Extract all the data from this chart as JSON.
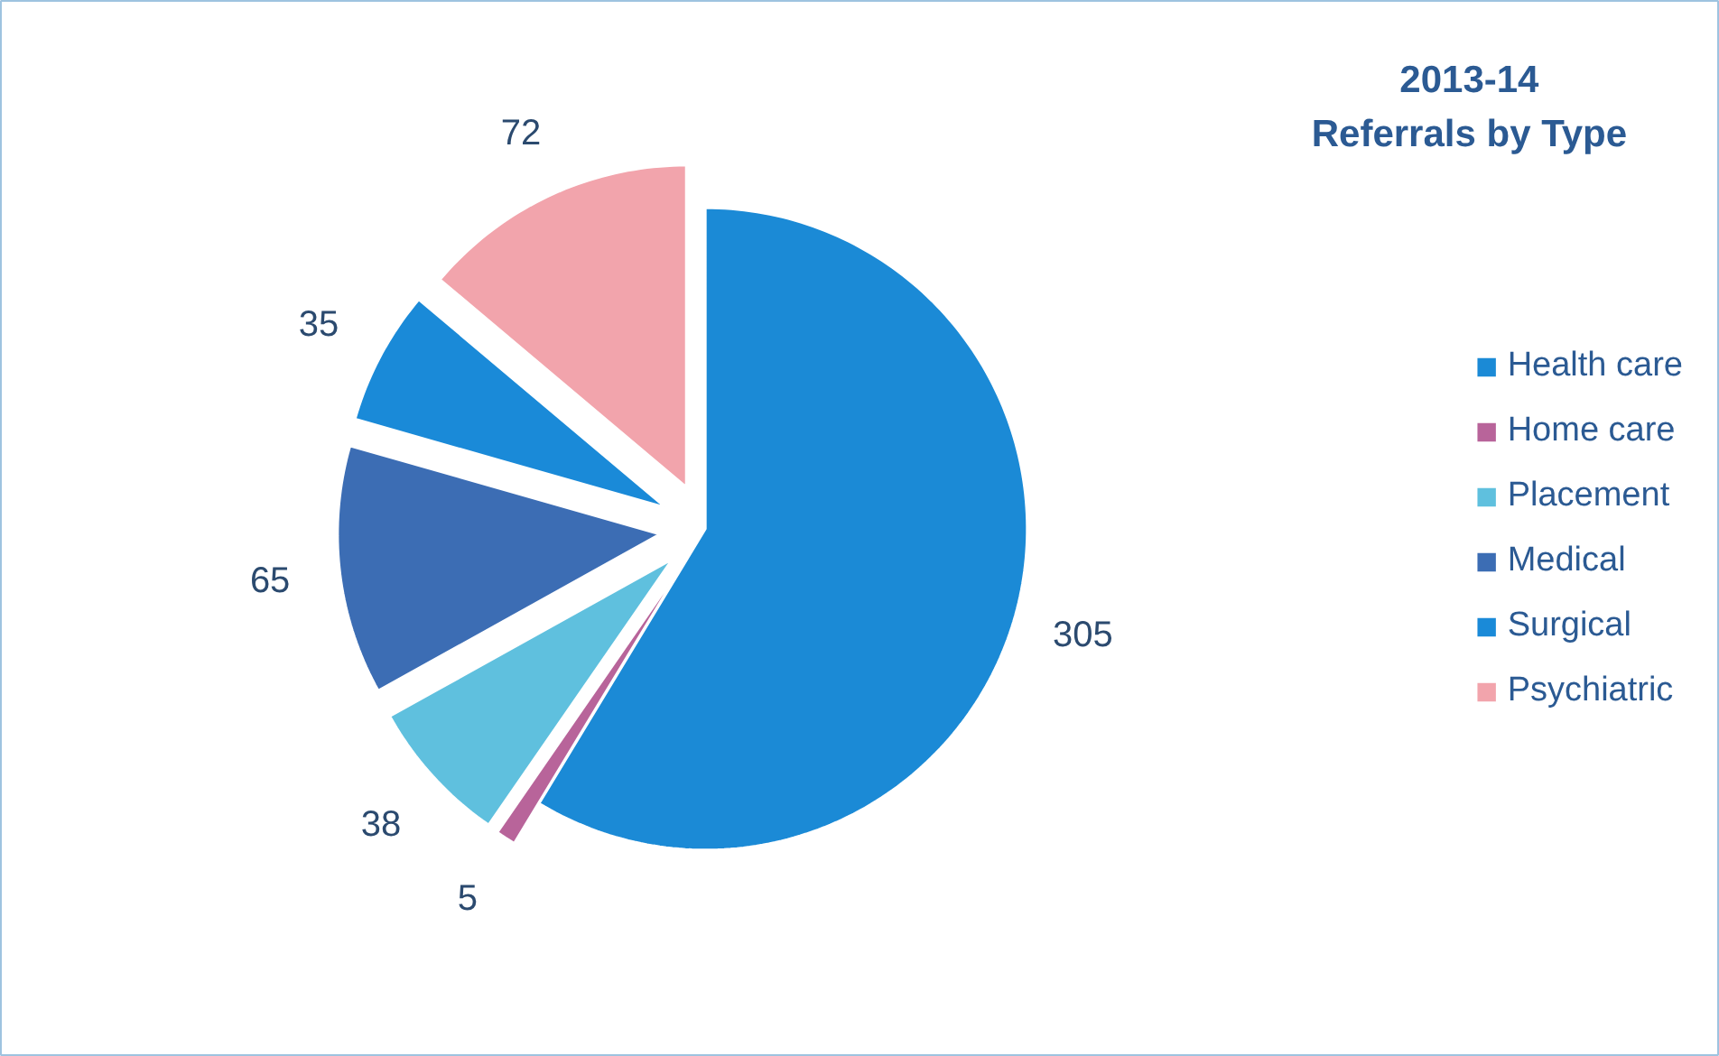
{
  "chart_data": {
    "type": "pie",
    "title": "2013-14\nReferrals by Type",
    "categories": [
      "Health care",
      "Home care",
      "Placement",
      "Medical",
      "Surgical",
      "Psychiatric"
    ],
    "values": [
      305,
      5,
      38,
      65,
      35,
      72
    ],
    "colors": [
      "#1b8ad6",
      "#b8649a",
      "#5fc0de",
      "#3c6db4",
      "#1a8ad8",
      "#f2a4ac"
    ],
    "data_labels": true,
    "legend": "right"
  }
}
